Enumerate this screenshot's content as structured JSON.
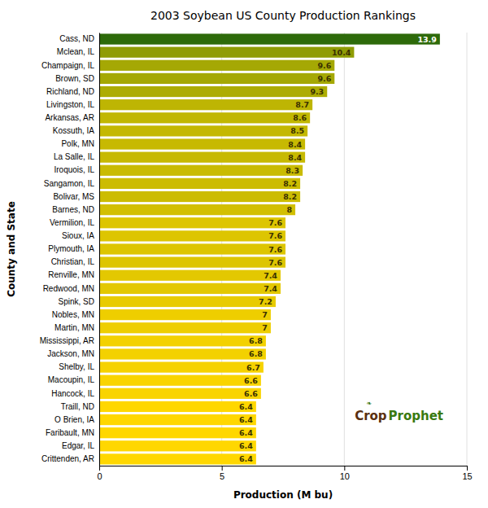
{
  "chart_data": {
    "type": "bar",
    "orientation": "horizontal",
    "title": "2003 Soybean US County Production Rankings",
    "x_label": "Production (M bu)",
    "y_label": "County and State",
    "categories": [
      "Crittenden, AR",
      "Edgar, IL",
      "Faribault, MN",
      "O Brien, IA",
      "Traill, ND",
      "Hancock, IL",
      "Macoupin, IL",
      "Shelby, IL",
      "Jackson, MN",
      "Mississippi, AR",
      "Martin, MN",
      "Nobles, MN",
      "Spink, SD",
      "Redwood, MN",
      "Renville, MN",
      "Christian, IL",
      "Plymouth, IA",
      "Sioux, IA",
      "Vermilion, IL",
      "Barnes, ND",
      "Bolivar, MS",
      "Sangamon, IL",
      "Iroquois, IL",
      "La Salle, IL",
      "Polk, MN",
      "Kossuth, IA",
      "Arkansas, AR",
      "Livingston, IL",
      "Richland, ND",
      "Brown, SD",
      "Champaign, IL",
      "Mclean, IL",
      "Cass, ND"
    ],
    "values": [
      6.4,
      6.4,
      6.4,
      6.4,
      6.4,
      6.6,
      6.6,
      6.7,
      6.8,
      6.8,
      7.0,
      7.0,
      7.2,
      7.4,
      7.4,
      7.6,
      7.6,
      7.6,
      7.6,
      8.0,
      8.2,
      8.2,
      8.3,
      8.4,
      8.4,
      8.5,
      8.6,
      8.7,
      9.3,
      9.6,
      9.6,
      10.4,
      13.9
    ],
    "colors": [
      "#ffd700",
      "#ffd700",
      "#ffd700",
      "#ffd700",
      "#ffd700",
      "#f9d400",
      "#f9d400",
      "#f6d200",
      "#f3d100",
      "#f3d100",
      "#eece00",
      "#eece00",
      "#e8cb01",
      "#e3c801",
      "#e3c801",
      "#ddc501",
      "#ddc501",
      "#ddc501",
      "#ddc501",
      "#d2bf02",
      "#ccbc02",
      "#ccbc02",
      "#c9bb02",
      "#c7b902",
      "#c7b902",
      "#c4b802",
      "#c1b702",
      "#beb503",
      "#adac03",
      "#a5a804",
      "#a5a804",
      "#8f9c05",
      "#2d6a0a"
    ],
    "xlim": [
      0,
      15
    ],
    "xticks": [
      0,
      5,
      10,
      15
    ],
    "grid": true,
    "data_labels": true,
    "annotations": [
      {
        "text": "Crop",
        "color": "#5a3010"
      },
      {
        "text": "Prophet",
        "color": "#3a7a10"
      },
      {
        "text": "❧",
        "color": "#3a7a10"
      }
    ]
  }
}
